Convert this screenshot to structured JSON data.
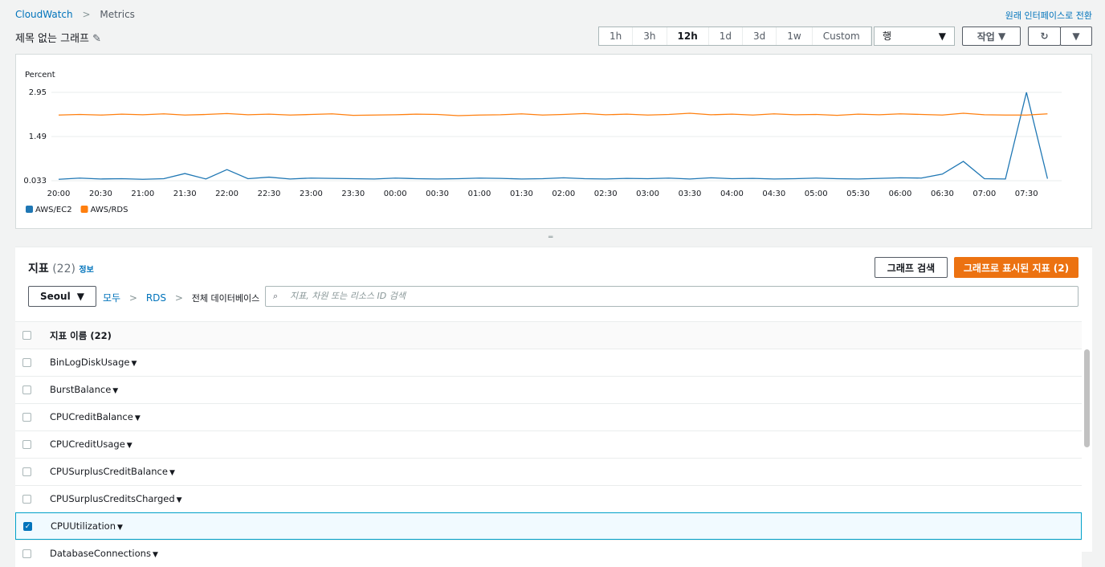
{
  "breadcrumb": [
    "CloudWatch",
    "Metrics"
  ],
  "switch_link": "원래 인터페이스로 전환",
  "graph_title": "제목 없는 그래프",
  "time_ranges": [
    {
      "label": "1h",
      "selected": false
    },
    {
      "label": "3h",
      "selected": false
    },
    {
      "label": "12h",
      "selected": true
    },
    {
      "label": "1d",
      "selected": false
    },
    {
      "label": "3d",
      "selected": false
    },
    {
      "label": "1w",
      "selected": false
    },
    {
      "label": "Custom",
      "selected": false
    }
  ],
  "view_select": "행",
  "actions_button": "작업",
  "chart_data": {
    "type": "line",
    "y_label": "Percent",
    "categories": [
      "20:00",
      null,
      "20:30",
      null,
      "21:00",
      null,
      "21:30",
      null,
      "22:00",
      null,
      "22:30",
      null,
      "23:00",
      null,
      "23:30",
      null,
      "00:00",
      null,
      "00:30",
      null,
      "01:00",
      null,
      "01:30",
      null,
      "02:00",
      null,
      "02:30",
      null,
      "03:00",
      null,
      "03:30",
      null,
      "04:00",
      null,
      "04:30",
      null,
      "05:00",
      null,
      "05:30",
      null,
      "06:00",
      null,
      "06:30",
      null,
      "07:00",
      null,
      "07:30",
      null
    ],
    "series": [
      {
        "name": "AWS/EC2",
        "color": "#1f77b4",
        "values": [
          0.08,
          0.12,
          0.09,
          0.1,
          0.08,
          0.1,
          0.27,
          0.09,
          0.4,
          0.1,
          0.15,
          0.09,
          0.12,
          0.11,
          0.1,
          0.09,
          0.12,
          0.1,
          0.09,
          0.1,
          0.12,
          0.11,
          0.09,
          0.1,
          0.13,
          0.1,
          0.09,
          0.11,
          0.1,
          0.12,
          0.09,
          0.13,
          0.1,
          0.11,
          0.09,
          0.1,
          0.12,
          0.1,
          0.09,
          0.11,
          0.13,
          0.12,
          0.25,
          0.67,
          0.1,
          0.09,
          2.95,
          0.1
        ]
      },
      {
        "name": "AWS/RDS",
        "color": "#ff7f0e",
        "values": [
          2.2,
          2.22,
          2.2,
          2.23,
          2.21,
          2.24,
          2.2,
          2.22,
          2.25,
          2.21,
          2.23,
          2.2,
          2.22,
          2.24,
          2.19,
          2.2,
          2.21,
          2.23,
          2.22,
          2.18,
          2.2,
          2.21,
          2.24,
          2.2,
          2.22,
          2.25,
          2.21,
          2.23,
          2.2,
          2.22,
          2.26,
          2.21,
          2.23,
          2.2,
          2.24,
          2.21,
          2.22,
          2.19,
          2.23,
          2.21,
          2.24,
          2.22,
          2.2,
          2.26,
          2.21,
          2.2,
          2.2,
          2.24
        ]
      }
    ],
    "ylim": [
      0.033,
      2.95
    ],
    "yticks": [
      0.033,
      1.49,
      2.95
    ],
    "grid": true,
    "legend": "bottom-left"
  },
  "metrics_panel": {
    "title": "지표",
    "count": "(22)",
    "info": "정보",
    "search_graph_button": "그래프 검색",
    "graphed_button": "그래프로 표시된 지표 (2)",
    "region": "Seoul",
    "path": [
      "모두",
      "RDS",
      "전체 데이터베이스"
    ],
    "search_placeholder": "지표, 차원 또는 리소스 ID 검색",
    "column_header": "지표 이름 (22)",
    "rows": [
      {
        "name": "BinLogDiskUsage",
        "checked": false
      },
      {
        "name": "BurstBalance",
        "checked": false
      },
      {
        "name": "CPUCreditBalance",
        "checked": false
      },
      {
        "name": "CPUCreditUsage",
        "checked": false
      },
      {
        "name": "CPUSurplusCreditBalance",
        "checked": false
      },
      {
        "name": "CPUSurplusCreditsCharged",
        "checked": false
      },
      {
        "name": "CPUUtilization",
        "checked": true
      },
      {
        "name": "DatabaseConnections",
        "checked": false
      }
    ]
  }
}
